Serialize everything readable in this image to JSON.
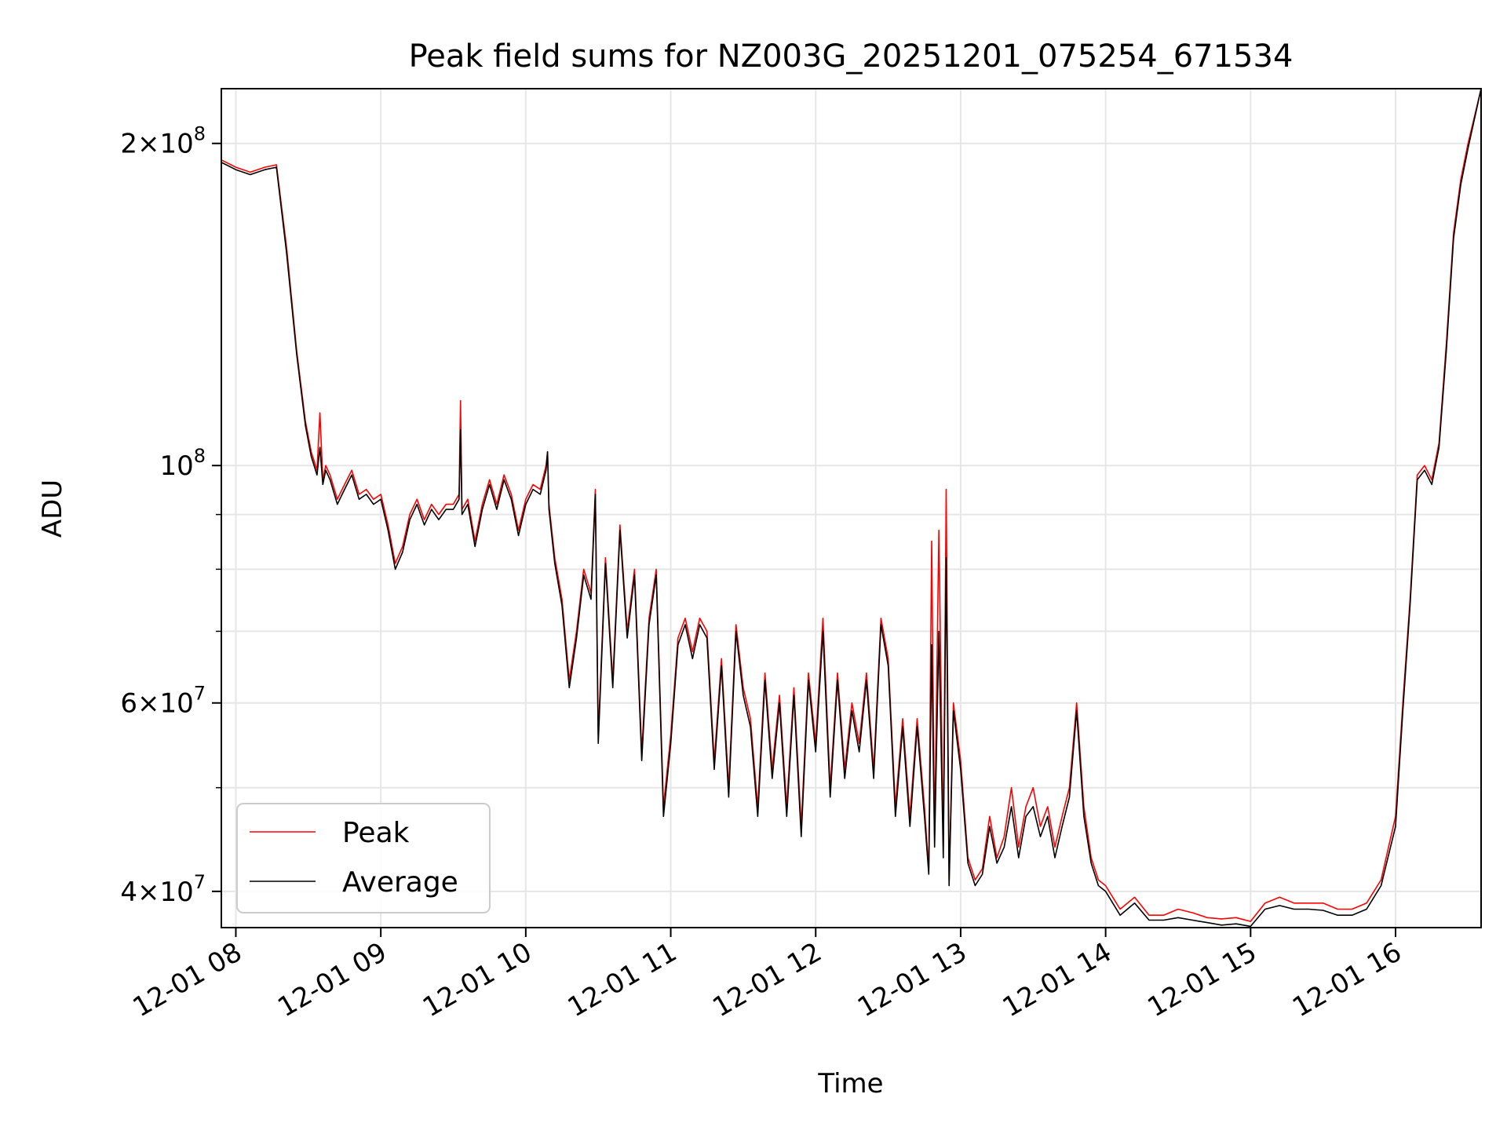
{
  "chart_data": {
    "type": "line",
    "title": "Peak field sums for NZ003G_20251201_075254_671534",
    "xlabel": "Time",
    "ylabel": "ADU",
    "x_unit": "hour of 2025-12-01",
    "xlim": [
      7.9,
      16.59
    ],
    "ylim": [
      37000000,
      225000000
    ],
    "y_scale": "log",
    "grid": true,
    "legend_position": "lower-left",
    "x_ticks": [
      {
        "value": 8,
        "label": "12-01 08"
      },
      {
        "value": 9,
        "label": "12-01 09"
      },
      {
        "value": 10,
        "label": "12-01 10"
      },
      {
        "value": 11,
        "label": "12-01 11"
      },
      {
        "value": 12,
        "label": "12-01 12"
      },
      {
        "value": 13,
        "label": "12-01 13"
      },
      {
        "value": 14,
        "label": "12-01 14"
      },
      {
        "value": 15,
        "label": "12-01 15"
      },
      {
        "value": 16,
        "label": "12-01 16"
      }
    ],
    "y_major_ticks": [
      {
        "value": 40000000,
        "mantissa": "4",
        "exponent": "7"
      },
      {
        "value": 60000000,
        "mantissa": "6",
        "exponent": "7"
      },
      {
        "value": 100000000,
        "mantissa": "",
        "exponent": "8"
      },
      {
        "value": 200000000,
        "mantissa": "2",
        "exponent": "8"
      }
    ],
    "y_minor_ticks": [
      50000000,
      70000000,
      80000000,
      90000000
    ],
    "series": [
      {
        "name": "Peak",
        "color": "#ff0000",
        "x": [
          7.9,
          8.0,
          8.1,
          8.2,
          8.28,
          8.35,
          8.42,
          8.48,
          8.52,
          8.56,
          8.58,
          8.6,
          8.62,
          8.65,
          8.7,
          8.75,
          8.8,
          8.85,
          8.9,
          8.95,
          9.0,
          9.05,
          9.1,
          9.15,
          9.2,
          9.25,
          9.3,
          9.35,
          9.4,
          9.45,
          9.5,
          9.54,
          9.55,
          9.56,
          9.6,
          9.65,
          9.7,
          9.75,
          9.8,
          9.85,
          9.9,
          9.95,
          10.0,
          10.05,
          10.1,
          10.14,
          10.15,
          10.16,
          10.2,
          10.25,
          10.3,
          10.35,
          10.4,
          10.45,
          10.48,
          10.5,
          10.55,
          10.6,
          10.65,
          10.7,
          10.75,
          10.8,
          10.85,
          10.9,
          10.95,
          11.0,
          11.05,
          11.1,
          11.15,
          11.2,
          11.25,
          11.3,
          11.35,
          11.4,
          11.45,
          11.5,
          11.55,
          11.6,
          11.65,
          11.7,
          11.75,
          11.8,
          11.85,
          11.9,
          11.95,
          12.0,
          12.05,
          12.1,
          12.15,
          12.2,
          12.25,
          12.3,
          12.35,
          12.4,
          12.45,
          12.5,
          12.55,
          12.6,
          12.65,
          12.7,
          12.75,
          12.78,
          12.8,
          12.82,
          12.85,
          12.88,
          12.9,
          12.92,
          12.95,
          13.0,
          13.05,
          13.1,
          13.15,
          13.2,
          13.25,
          13.3,
          13.35,
          13.4,
          13.45,
          13.5,
          13.55,
          13.6,
          13.65,
          13.7,
          13.75,
          13.8,
          13.85,
          13.9,
          13.95,
          14.0,
          14.1,
          14.2,
          14.3,
          14.4,
          14.5,
          14.6,
          14.7,
          14.8,
          14.9,
          15.0,
          15.1,
          15.2,
          15.3,
          15.4,
          15.5,
          15.6,
          15.7,
          15.8,
          15.9,
          16.0,
          16.05,
          16.1,
          16.15,
          16.2,
          16.25,
          16.3,
          16.35,
          16.4,
          16.45,
          16.5,
          16.59
        ],
        "y": [
          193000000,
          190000000,
          188000000,
          190000000,
          191000000,
          160000000,
          128000000,
          110000000,
          103000000,
          99000000,
          112000000,
          97000000,
          100000000,
          98000000,
          93000000,
          96000000,
          99000000,
          94000000,
          95000000,
          93000000,
          94000000,
          88000000,
          81000000,
          84000000,
          90000000,
          93000000,
          89000000,
          92000000,
          90000000,
          92000000,
          92000000,
          94000000,
          115000000,
          91000000,
          93000000,
          85000000,
          92000000,
          97000000,
          92000000,
          98000000,
          94000000,
          87000000,
          93000000,
          96000000,
          95000000,
          100000000,
          103000000,
          92000000,
          82000000,
          75000000,
          63000000,
          70000000,
          80000000,
          76000000,
          95000000,
          56000000,
          82000000,
          63000000,
          88000000,
          70000000,
          80000000,
          54000000,
          72000000,
          80000000,
          48000000,
          56000000,
          69000000,
          72000000,
          67000000,
          72000000,
          70000000,
          53000000,
          66000000,
          50000000,
          71000000,
          62000000,
          58000000,
          48000000,
          64000000,
          52000000,
          61000000,
          48000000,
          62000000,
          46000000,
          64000000,
          55000000,
          72000000,
          50000000,
          64000000,
          52000000,
          60000000,
          55000000,
          64000000,
          52000000,
          72000000,
          66000000,
          48000000,
          58000000,
          47000000,
          58000000,
          48000000,
          42000000,
          85000000,
          45000000,
          87000000,
          44000000,
          95000000,
          41000000,
          60000000,
          53000000,
          43000000,
          41000000,
          42000000,
          47000000,
          43000000,
          45000000,
          50000000,
          44000000,
          48000000,
          50000000,
          46000000,
          48000000,
          44000000,
          47000000,
          50000000,
          60000000,
          48000000,
          43000000,
          41000000,
          40500000,
          38500000,
          39500000,
          38000000,
          38000000,
          38500000,
          38200000,
          37800000,
          37700000,
          37800000,
          37500000,
          39000000,
          39500000,
          39000000,
          39000000,
          39000000,
          38500000,
          38500000,
          39000000,
          41000000,
          47000000,
          60000000,
          75000000,
          98000000,
          100000000,
          97000000,
          105000000,
          130000000,
          165000000,
          185000000,
          200000000,
          225000000
        ]
      },
      {
        "name": "Average",
        "color": "#000000",
        "x": [
          7.9,
          8.0,
          8.1,
          8.2,
          8.28,
          8.35,
          8.42,
          8.48,
          8.52,
          8.56,
          8.58,
          8.6,
          8.62,
          8.65,
          8.7,
          8.75,
          8.8,
          8.85,
          8.9,
          8.95,
          9.0,
          9.05,
          9.1,
          9.15,
          9.2,
          9.25,
          9.3,
          9.35,
          9.4,
          9.45,
          9.5,
          9.54,
          9.55,
          9.56,
          9.6,
          9.65,
          9.7,
          9.75,
          9.8,
          9.85,
          9.9,
          9.95,
          10.0,
          10.05,
          10.1,
          10.14,
          10.15,
          10.16,
          10.2,
          10.25,
          10.3,
          10.35,
          10.4,
          10.45,
          10.48,
          10.5,
          10.55,
          10.6,
          10.65,
          10.7,
          10.75,
          10.8,
          10.85,
          10.9,
          10.95,
          11.0,
          11.05,
          11.1,
          11.15,
          11.2,
          11.25,
          11.3,
          11.35,
          11.4,
          11.45,
          11.5,
          11.55,
          11.6,
          11.65,
          11.7,
          11.75,
          11.8,
          11.85,
          11.9,
          11.95,
          12.0,
          12.05,
          12.1,
          12.15,
          12.2,
          12.25,
          12.3,
          12.35,
          12.4,
          12.45,
          12.5,
          12.55,
          12.6,
          12.65,
          12.7,
          12.75,
          12.78,
          12.8,
          12.82,
          12.85,
          12.88,
          12.9,
          12.92,
          12.95,
          13.0,
          13.05,
          13.1,
          13.15,
          13.2,
          13.25,
          13.3,
          13.35,
          13.4,
          13.45,
          13.5,
          13.55,
          13.6,
          13.65,
          13.7,
          13.75,
          13.8,
          13.85,
          13.9,
          13.95,
          14.0,
          14.1,
          14.2,
          14.3,
          14.4,
          14.5,
          14.6,
          14.7,
          14.8,
          14.9,
          15.0,
          15.1,
          15.2,
          15.3,
          15.4,
          15.5,
          15.6,
          15.7,
          15.8,
          15.9,
          16.0,
          16.05,
          16.1,
          16.15,
          16.2,
          16.25,
          16.3,
          16.35,
          16.4,
          16.45,
          16.5,
          16.59
        ],
        "y": [
          192000000,
          189000000,
          187000000,
          189000000,
          190000000,
          158000000,
          127000000,
          109000000,
          102000000,
          98000000,
          104000000,
          96000000,
          99000000,
          97000000,
          92000000,
          95000000,
          98000000,
          93000000,
          94000000,
          92000000,
          93000000,
          87000000,
          80000000,
          83000000,
          89000000,
          92000000,
          88000000,
          91000000,
          89000000,
          91000000,
          91000000,
          93000000,
          108000000,
          90000000,
          92000000,
          84000000,
          91000000,
          96000000,
          91000000,
          97000000,
          93000000,
          86000000,
          92000000,
          95000000,
          94000000,
          99000000,
          103000000,
          91000000,
          81000000,
          74000000,
          62000000,
          69000000,
          79000000,
          75000000,
          94000000,
          55000000,
          81000000,
          62000000,
          87000000,
          69000000,
          79000000,
          53000000,
          71000000,
          79000000,
          47000000,
          55000000,
          68000000,
          71000000,
          66000000,
          71000000,
          69000000,
          52000000,
          65000000,
          49000000,
          70000000,
          61000000,
          57000000,
          47000000,
          63000000,
          51000000,
          60000000,
          47000000,
          61000000,
          45000000,
          63000000,
          54000000,
          70000000,
          49000000,
          63000000,
          51000000,
          59000000,
          54000000,
          63000000,
          51000000,
          71000000,
          65000000,
          47000000,
          57000000,
          46000000,
          57000000,
          47000000,
          41500000,
          68000000,
          44000000,
          70000000,
          43000000,
          82000000,
          40500000,
          59000000,
          52000000,
          42500000,
          40500000,
          41500000,
          46000000,
          42500000,
          44000000,
          48000000,
          43000000,
          47000000,
          48000000,
          45000000,
          47000000,
          43000000,
          46000000,
          49000000,
          59000000,
          47000000,
          42500000,
          40500000,
          40000000,
          38000000,
          39000000,
          37600000,
          37600000,
          37800000,
          37600000,
          37400000,
          37200000,
          37300000,
          37100000,
          38500000,
          38800000,
          38500000,
          38500000,
          38400000,
          38000000,
          38000000,
          38500000,
          40500000,
          46000000,
          59000000,
          74000000,
          97000000,
          99000000,
          96000000,
          104000000,
          128000000,
          163000000,
          183000000,
          198000000,
          225000000
        ]
      }
    ]
  }
}
